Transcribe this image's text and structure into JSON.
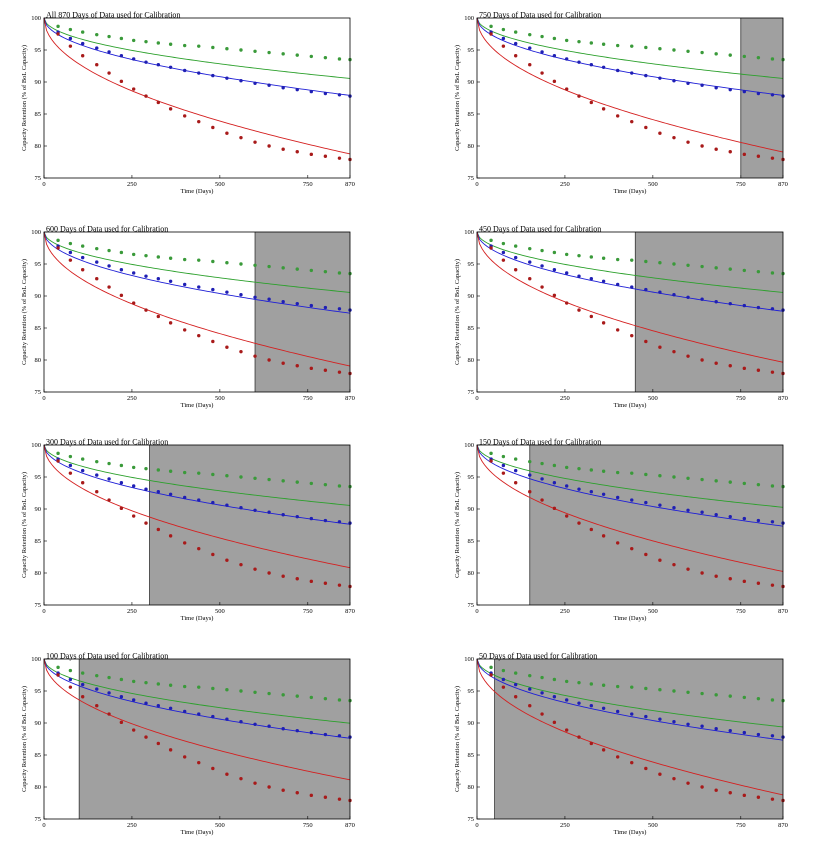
{
  "figure": {
    "xlabel": "Time (Days)",
    "ylabel": "Capacity Retention (% of BoL Capacity)"
  },
  "colors": {
    "green": "#3a9a3a",
    "blue": "#1f1fb4",
    "red": "#a81a1a",
    "shade": "#a0a0a0",
    "green_line": "#2ca02c",
    "blue_line": "#1f1fd6",
    "red_line": "#d42020"
  },
  "chart_data": [
    {
      "type": "scatter",
      "title": "All 870 Days of Data used for Calibration",
      "calibration_days": 870,
      "xlim": [
        0,
        870
      ],
      "ylim": [
        75,
        100
      ],
      "xticks": [
        0,
        250,
        500,
        750,
        870
      ],
      "yticks": [
        75,
        80,
        85,
        90,
        95,
        100
      ],
      "xlabel": "Time (Days)",
      "ylabel": "Capacity Retention (% of BoL Capacity)"
    },
    {
      "type": "scatter",
      "title": "750 Days of Data used for Calibration",
      "calibration_days": 750,
      "xlim": [
        0,
        870
      ],
      "ylim": [
        75,
        100
      ],
      "xticks": [
        0,
        250,
        500,
        750,
        870
      ],
      "yticks": [
        75,
        80,
        85,
        90,
        95,
        100
      ],
      "xlabel": "Time (Days)",
      "ylabel": "Capacity Retention (% of BoL Capacity)"
    },
    {
      "type": "scatter",
      "title": "600 Days of Data used for Calibration",
      "calibration_days": 600,
      "xlim": [
        0,
        870
      ],
      "ylim": [
        75,
        100
      ],
      "xticks": [
        0,
        250,
        500,
        750,
        870
      ],
      "yticks": [
        75,
        80,
        85,
        90,
        95,
        100
      ],
      "xlabel": "Time (Days)",
      "ylabel": "Capacity Retention (% of BoL Capacity)"
    },
    {
      "type": "scatter",
      "title": "450 Days of Data used for Calibration",
      "calibration_days": 450,
      "xlim": [
        0,
        870
      ],
      "ylim": [
        75,
        100
      ],
      "xticks": [
        0,
        250,
        500,
        750,
        870
      ],
      "yticks": [
        75,
        80,
        85,
        90,
        95,
        100
      ],
      "xlabel": "Time (Days)",
      "ylabel": "Capacity Retention (% of BoL Capacity)"
    },
    {
      "type": "scatter",
      "title": "300 Days of Data used for Calibration",
      "calibration_days": 300,
      "xlim": [
        0,
        870
      ],
      "ylim": [
        75,
        100
      ],
      "xticks": [
        0,
        250,
        500,
        750,
        870
      ],
      "yticks": [
        75,
        80,
        85,
        90,
        95,
        100
      ],
      "xlabel": "Time (Days)",
      "ylabel": "Capacity Retention (% of BoL Capacity)"
    },
    {
      "type": "scatter",
      "title": "150 Days of Data used for Calibration",
      "calibration_days": 150,
      "xlim": [
        0,
        870
      ],
      "ylim": [
        75,
        100
      ],
      "xticks": [
        0,
        250,
        500,
        750,
        870
      ],
      "yticks": [
        75,
        80,
        85,
        90,
        95,
        100
      ],
      "xlabel": "Time (Days)",
      "ylabel": "Capacity Retention (% of BoL Capacity)"
    },
    {
      "type": "scatter",
      "title": "100 Days of Data used for Calibration",
      "calibration_days": 100,
      "xlim": [
        0,
        870
      ],
      "ylim": [
        75,
        100
      ],
      "xticks": [
        0,
        250,
        500,
        750,
        870
      ],
      "yticks": [
        75,
        80,
        85,
        90,
        95,
        100
      ],
      "xlabel": "Time (Days)",
      "ylabel": "Capacity Retention (% of BoL Capacity)"
    },
    {
      "type": "scatter",
      "title": "50 Days of Data used for Calibration",
      "calibration_days": 50,
      "xlim": [
        0,
        870
      ],
      "ylim": [
        75,
        100
      ],
      "xticks": [
        0,
        250,
        500,
        750,
        870
      ],
      "yticks": [
        75,
        80,
        85,
        90,
        95,
        100
      ],
      "xlabel": "Time (Days)",
      "ylabel": "Capacity Retention (% of BoL Capacity)"
    }
  ],
  "observed_data": {
    "x": [
      40,
      75,
      110,
      150,
      185,
      220,
      255,
      290,
      325,
      360,
      400,
      440,
      480,
      520,
      560,
      600,
      640,
      680,
      720,
      760,
      800,
      840,
      870
    ],
    "green": [
      98.7,
      98.2,
      97.8,
      97.4,
      97.1,
      96.8,
      96.5,
      96.3,
      96.1,
      95.9,
      95.7,
      95.6,
      95.4,
      95.2,
      95.0,
      94.8,
      94.6,
      94.4,
      94.2,
      94.0,
      93.8,
      93.6,
      93.5
    ],
    "blue": [
      97.8,
      96.8,
      96.0,
      95.3,
      94.7,
      94.1,
      93.6,
      93.1,
      92.7,
      92.3,
      91.8,
      91.4,
      91.0,
      90.6,
      90.2,
      89.8,
      89.5,
      89.1,
      88.8,
      88.5,
      88.2,
      88.0,
      87.8
    ],
    "red": [
      97.5,
      95.6,
      94.1,
      92.7,
      91.4,
      90.1,
      88.9,
      87.8,
      86.8,
      85.8,
      84.7,
      83.8,
      82.9,
      82.0,
      81.3,
      80.6,
      80.0,
      79.5,
      79.1,
      78.7,
      78.4,
      78.1,
      77.9
    ]
  },
  "model_fits": [
    {
      "green": {
        "a": 0.32,
        "b": 0.5
      },
      "blue": {
        "a": 0.41,
        "b": 0.5
      },
      "red": {
        "a": 0.72,
        "b": 0.5
      }
    },
    {
      "green": {
        "a": 0.32,
        "b": 0.5
      },
      "blue": {
        "a": 0.41,
        "b": 0.5
      },
      "red": {
        "a": 0.71,
        "b": 0.5
      }
    },
    {
      "green": {
        "a": 0.32,
        "b": 0.5
      },
      "blue": {
        "a": 0.43,
        "b": 0.5
      },
      "red": {
        "a": 0.71,
        "b": 0.5
      }
    },
    {
      "green": {
        "a": 0.32,
        "b": 0.5
      },
      "blue": {
        "a": 0.42,
        "b": 0.5
      },
      "red": {
        "a": 0.69,
        "b": 0.5
      }
    },
    {
      "green": {
        "a": 0.32,
        "b": 0.5
      },
      "blue": {
        "a": 0.42,
        "b": 0.5
      },
      "red": {
        "a": 0.65,
        "b": 0.5
      }
    },
    {
      "green": {
        "a": 0.33,
        "b": 0.5
      },
      "blue": {
        "a": 0.43,
        "b": 0.5
      },
      "red": {
        "a": 0.67,
        "b": 0.5
      }
    },
    {
      "green": {
        "a": 0.34,
        "b": 0.5
      },
      "blue": {
        "a": 0.42,
        "b": 0.5
      },
      "red": {
        "a": 0.64,
        "b": 0.5
      }
    },
    {
      "green": {
        "a": 0.36,
        "b": 0.5
      },
      "blue": {
        "a": 0.43,
        "b": 0.5
      },
      "red": {
        "a": 0.72,
        "b": 0.5
      }
    }
  ]
}
